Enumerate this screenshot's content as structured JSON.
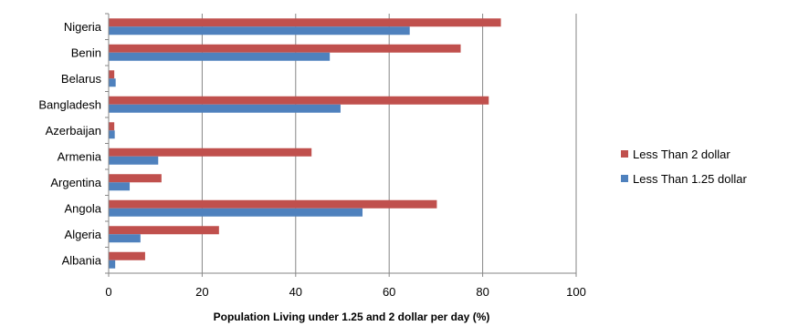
{
  "chart_data": {
    "type": "bar",
    "orientation": "horizontal",
    "title": "",
    "xlabel": "Population Living under 1.25 and 2 dollar per day (%)",
    "ylabel": "",
    "xlim": [
      0,
      100
    ],
    "xticks": [
      0,
      20,
      40,
      60,
      80,
      100
    ],
    "grid": "vertical",
    "legend_position": "right",
    "categories": [
      "Nigeria",
      "Benin",
      "Belarus",
      "Bangladesh",
      "Azerbaijan",
      "Armenia",
      "Argentina",
      "Angola",
      "Algeria",
      "Albania"
    ],
    "series": [
      {
        "name": "Less Than 2 dollar",
        "color": "#c0504d",
        "values": [
          83.9,
          75.3,
          1.2,
          81.3,
          1.2,
          43.4,
          11.3,
          70.2,
          23.6,
          7.8
        ]
      },
      {
        "name": "Less Than 1.25 dollar",
        "color": "#4f81bd",
        "values": [
          64.4,
          47.3,
          1.5,
          49.6,
          1.3,
          10.6,
          4.5,
          54.3,
          6.8,
          1.4
        ]
      }
    ]
  }
}
